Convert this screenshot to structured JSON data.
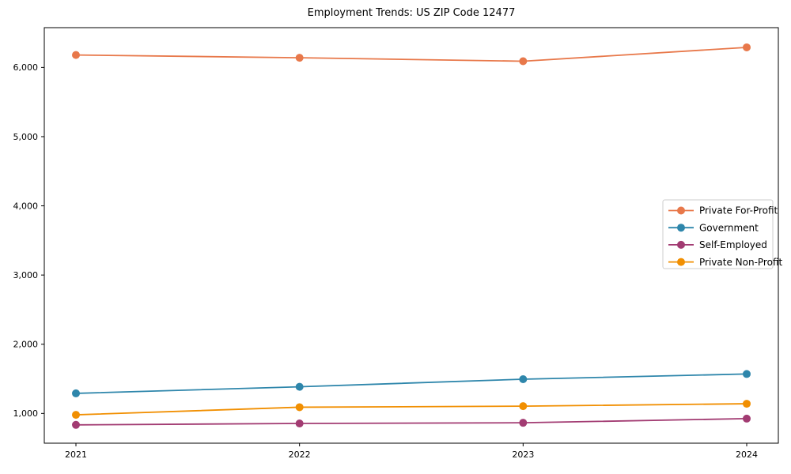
{
  "title": "Employment Trends: US ZIP Code 12477",
  "chart_data": {
    "type": "line",
    "title": "Employment Trends: US ZIP Code 12477",
    "x": [
      "2021",
      "2022",
      "2023",
      "2024"
    ],
    "series": [
      {
        "name": "Private For-Profit",
        "color": "#E8784A",
        "values": [
          6180,
          6140,
          6090,
          6290
        ]
      },
      {
        "name": "Government",
        "color": "#2E86AB",
        "values": [
          1290,
          1385,
          1495,
          1570
        ]
      },
      {
        "name": "Self-Employed",
        "color": "#A23B72",
        "values": [
          835,
          855,
          865,
          925
        ]
      },
      {
        "name": "Private Non-Profit",
        "color": "#F18F01",
        "values": [
          980,
          1090,
          1105,
          1140
        ]
      }
    ],
    "xlabel": "",
    "ylabel": "",
    "ylim": [
      570,
      6575
    ],
    "yticks": [
      1000,
      2000,
      3000,
      4000,
      5000,
      6000
    ],
    "ytick_labels": [
      "1,000",
      "2,000",
      "3,000",
      "4,000",
      "5,000",
      "6,000"
    ],
    "grid": false,
    "marker": "circle",
    "legend": {
      "position": "center-right",
      "border_color": "#cccccc",
      "background": "#ffffff",
      "entries": [
        "Private For-Profit",
        "Government",
        "Self-Employed",
        "Private Non-Profit"
      ]
    },
    "axis_color": "#000000"
  }
}
